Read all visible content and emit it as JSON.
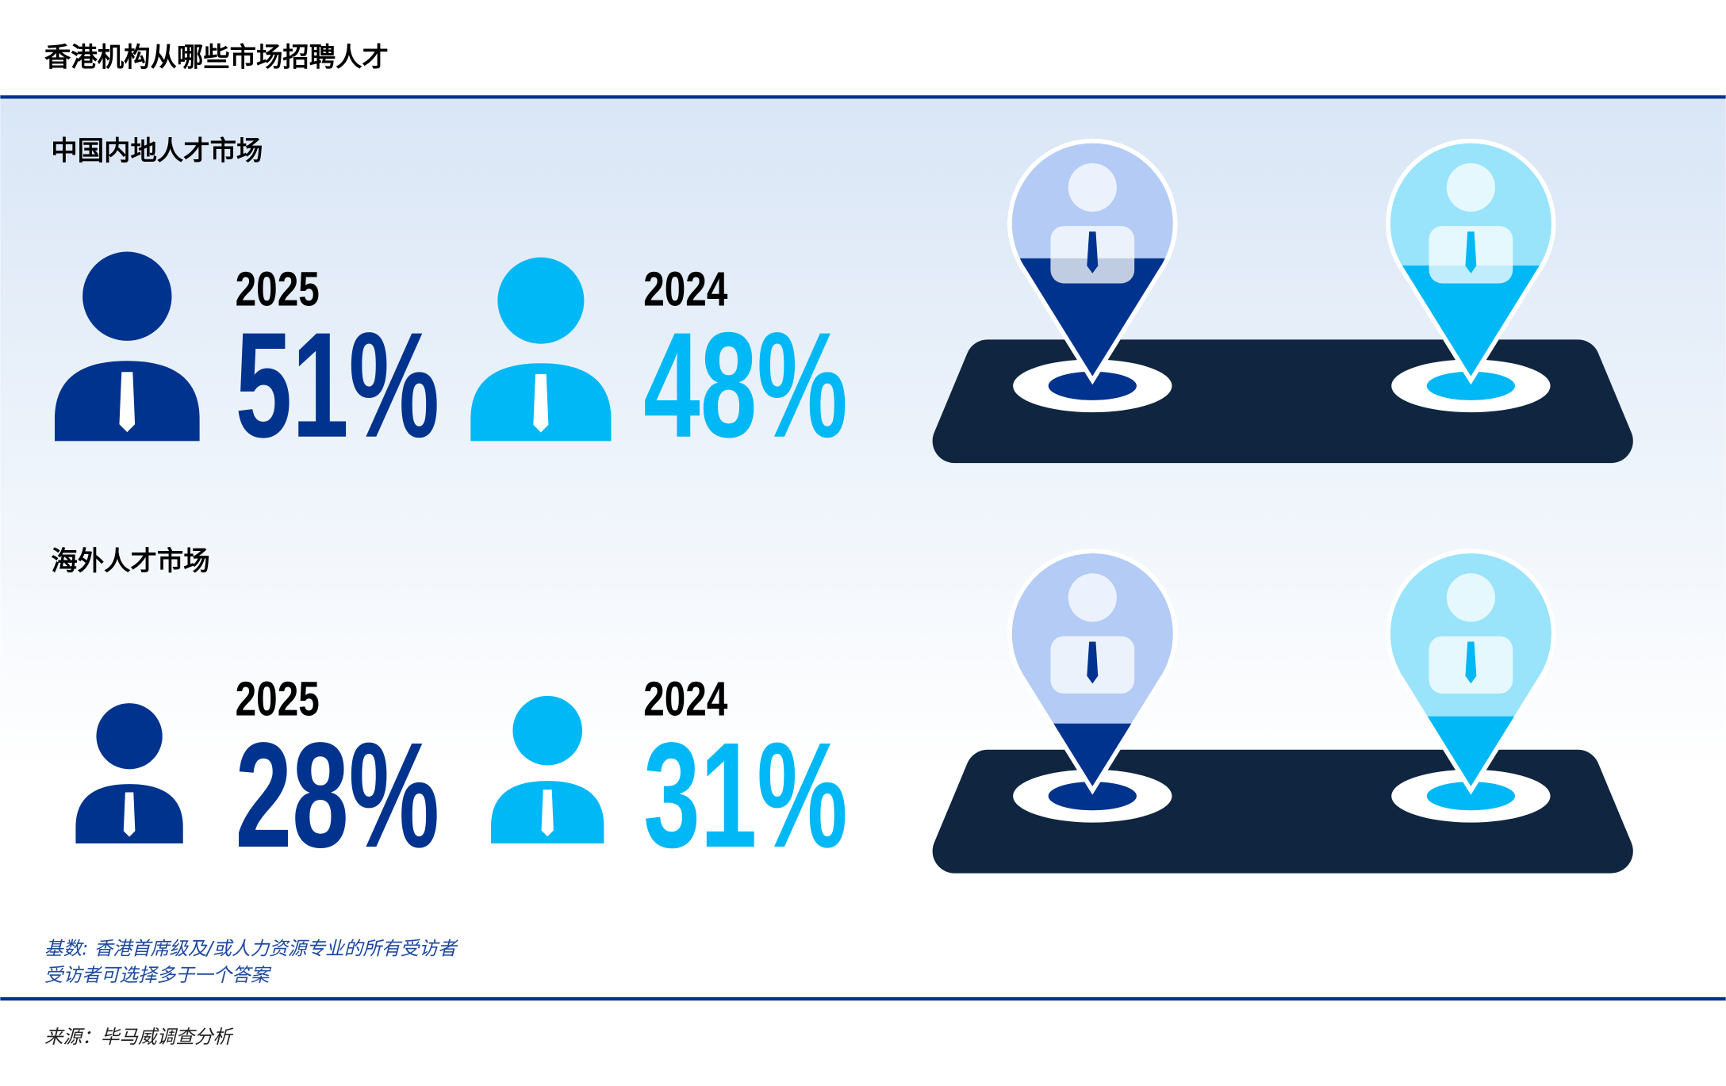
{
  "title": "香港机构从哪些市场招聘人才",
  "sections": [
    {
      "title": "中国内地人才市场",
      "years": [
        "2025",
        "2024"
      ],
      "values": [
        51,
        48
      ],
      "value_labels": [
        "51%",
        "48%"
      ],
      "colors": [
        "#00338d",
        "#00b8f5"
      ],
      "light_colors": [
        "#b3cbf5",
        "#99e3fb"
      ]
    },
    {
      "title": "海外人才市场",
      "years": [
        "2025",
        "2024"
      ],
      "values": [
        28,
        31
      ],
      "value_labels": [
        "28%",
        "31%"
      ],
      "colors": [
        "#00338d",
        "#00b8f5"
      ],
      "light_colors": [
        "#b3cbf5",
        "#99e3fb"
      ]
    }
  ],
  "notes": [
    "基数: 香港首席级及/或人力资源专业的所有受访者",
    "受访者可选择多于一个答案"
  ],
  "source": "来源：毕马威调查分析"
}
